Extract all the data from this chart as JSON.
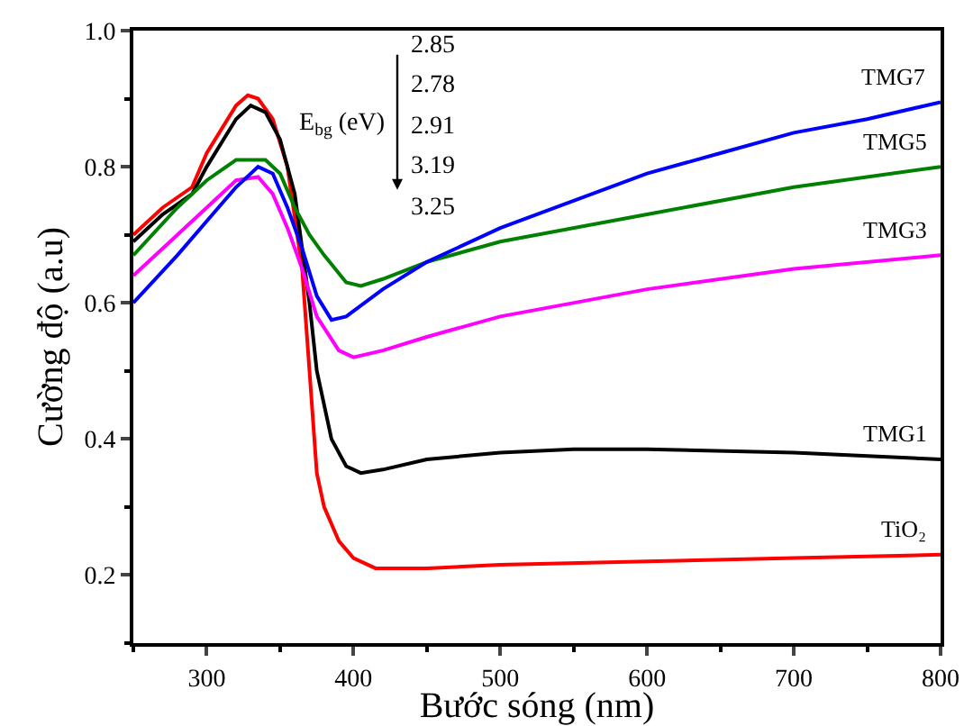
{
  "chart_data": {
    "type": "line",
    "xlabel": "Bước sóng (nm)",
    "ylabel": "Cường độ (a.u)",
    "xlim": [
      250,
      800
    ],
    "xticks": [
      300,
      400,
      500,
      600,
      700,
      800
    ],
    "ylim": [
      0.1,
      1.0
    ],
    "yticks": [
      0.2,
      0.4,
      0.6,
      {
        "value": 0.8,
        "label": "0.8"
      },
      {
        "value": 1.0,
        "label": "1.0"
      }
    ],
    "grid": false,
    "legend": false,
    "marker": "none",
    "line_style": "solid",
    "annotations": [
      "E$_{bg}$ (eV)",
      "2.85",
      "2.78",
      "2.91",
      "3.19",
      "3.25"
    ],
    "series": [
      {
        "name": "TiO₂",
        "color": "#ff0000",
        "x": [
          250,
          270,
          290,
          300,
          320,
          328,
          335,
          345,
          355,
          365,
          370,
          375,
          380,
          390,
          400,
          415,
          450,
          500,
          600,
          700,
          800
        ],
        "values": [
          0.7,
          0.74,
          0.77,
          0.82,
          0.89,
          0.905,
          0.9,
          0.87,
          0.8,
          0.65,
          0.5,
          0.35,
          0.3,
          0.25,
          0.225,
          0.21,
          0.21,
          0.215,
          0.22,
          0.225,
          0.23
        ]
      },
      {
        "name": "TMG1",
        "color": "#000000",
        "x": [
          250,
          270,
          290,
          300,
          320,
          330,
          340,
          350,
          360,
          370,
          375,
          385,
          395,
          405,
          420,
          450,
          500,
          550,
          600,
          700,
          800
        ],
        "values": [
          0.69,
          0.73,
          0.76,
          0.8,
          0.87,
          0.89,
          0.88,
          0.84,
          0.76,
          0.6,
          0.5,
          0.4,
          0.36,
          0.35,
          0.355,
          0.37,
          0.38,
          0.385,
          0.385,
          0.38,
          0.37
        ]
      },
      {
        "name": "TMG3",
        "color": "#ff00ff",
        "x": [
          250,
          280,
          300,
          320,
          335,
          345,
          355,
          365,
          375,
          390,
          400,
          420,
          450,
          500,
          600,
          700,
          800
        ],
        "values": [
          0.64,
          0.7,
          0.74,
          0.78,
          0.785,
          0.76,
          0.71,
          0.65,
          0.58,
          0.53,
          0.52,
          0.53,
          0.55,
          0.58,
          0.62,
          0.65,
          0.67
        ]
      },
      {
        "name": "TMG5",
        "color": "#008000",
        "x": [
          250,
          280,
          300,
          320,
          340,
          350,
          360,
          370,
          380,
          395,
          405,
          420,
          450,
          500,
          600,
          700,
          800
        ],
        "values": [
          0.67,
          0.74,
          0.78,
          0.81,
          0.81,
          0.79,
          0.74,
          0.7,
          0.67,
          0.63,
          0.625,
          0.635,
          0.66,
          0.69,
          0.73,
          0.77,
          0.8
        ]
      },
      {
        "name": "TMG7",
        "color": "#0000ff",
        "x": [
          250,
          280,
          300,
          320,
          335,
          345,
          355,
          365,
          375,
          385,
          395,
          420,
          450,
          500,
          550,
          600,
          650,
          700,
          750,
          800
        ],
        "values": [
          0.6,
          0.67,
          0.72,
          0.77,
          0.8,
          0.79,
          0.74,
          0.68,
          0.61,
          0.575,
          0.58,
          0.62,
          0.66,
          0.71,
          0.75,
          0.79,
          0.82,
          0.85,
          0.87,
          0.895
        ]
      }
    ]
  }
}
